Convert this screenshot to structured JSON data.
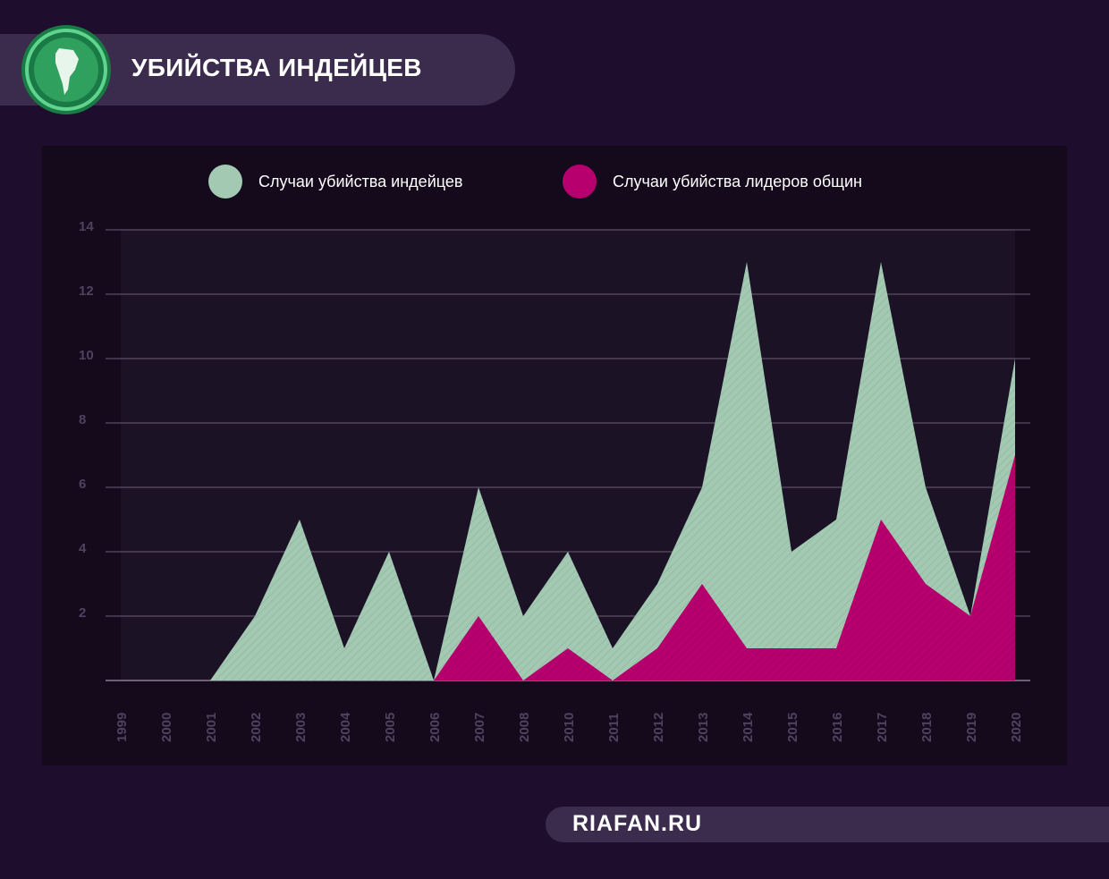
{
  "header": {
    "title": "УБИЙСТВА ИНДЕЙЦЕВ",
    "logo_icon": "south-america-globe-icon"
  },
  "footer": {
    "site": "RIAFAN.RU"
  },
  "colors": {
    "background": "#1e0d2d",
    "panel": "#140a1c",
    "indians": "#a3c9b3",
    "leaders": "#b7006e",
    "accent_green": "#2fa05e"
  },
  "chart_data": {
    "type": "area",
    "x": [
      "1999",
      "2000",
      "2001",
      "2002",
      "2003",
      "2004",
      "2005",
      "2006",
      "2007",
      "2008",
      "2010",
      "2011",
      "2012",
      "2013",
      "2014",
      "2015",
      "2016",
      "2017",
      "2018",
      "2019",
      "2020"
    ],
    "series": [
      {
        "name": "Случаи убийства индейцев",
        "values": [
          0,
          0,
          0,
          2,
          5,
          1,
          4,
          0,
          6,
          2,
          4,
          1,
          3,
          6,
          13,
          4,
          5,
          13,
          6,
          2,
          10
        ]
      },
      {
        "name": "Случаи убийства лидеров общин",
        "values": [
          0,
          0,
          0,
          0,
          0,
          0,
          0,
          0,
          2,
          0,
          1,
          0,
          1,
          3,
          1,
          1,
          1,
          5,
          3,
          2,
          7
        ]
      }
    ],
    "yticks": [
      "14",
      "12",
      "10",
      "8",
      "6",
      "4",
      "2"
    ],
    "ylim": [
      0,
      14
    ],
    "grid": true,
    "legend": "top"
  }
}
